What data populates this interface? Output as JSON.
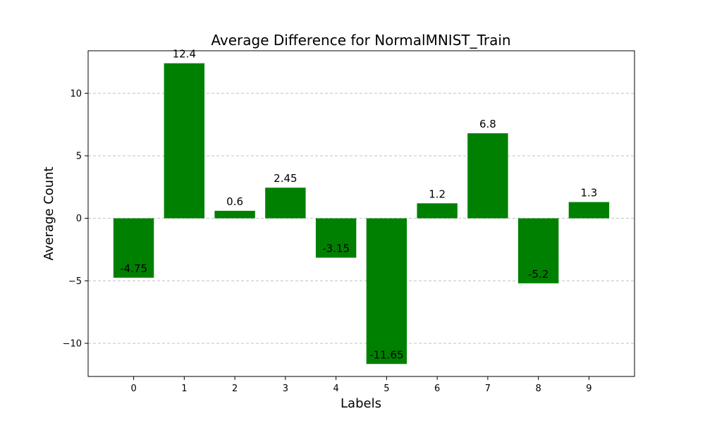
{
  "chart_data": {
    "type": "bar",
    "title": "Average Difference for NormalMNIST_Train",
    "xlabel": "Labels",
    "ylabel": "Average Count",
    "categories": [
      "0",
      "1",
      "2",
      "3",
      "4",
      "5",
      "6",
      "7",
      "8",
      "9"
    ],
    "values": [
      -4.75,
      12.4,
      0.6,
      2.45,
      -3.15,
      -11.65,
      1.2,
      6.8,
      -5.2,
      1.3
    ],
    "data_labels": [
      "-4.75",
      "12.4",
      "0.6",
      "2.45",
      "-3.15",
      "-11.65",
      "1.2",
      "6.8",
      "-5.2",
      "1.3"
    ],
    "yticks": [
      -10,
      -5,
      0,
      5,
      10
    ],
    "ytick_labels": [
      "−10",
      "−5",
      "0",
      "5",
      "10"
    ],
    "ylim": [
      -12.65,
      13.4
    ],
    "grid": "horizontal dashed",
    "bar_color": "#008000",
    "grid_color": "#c0c0c0"
  }
}
